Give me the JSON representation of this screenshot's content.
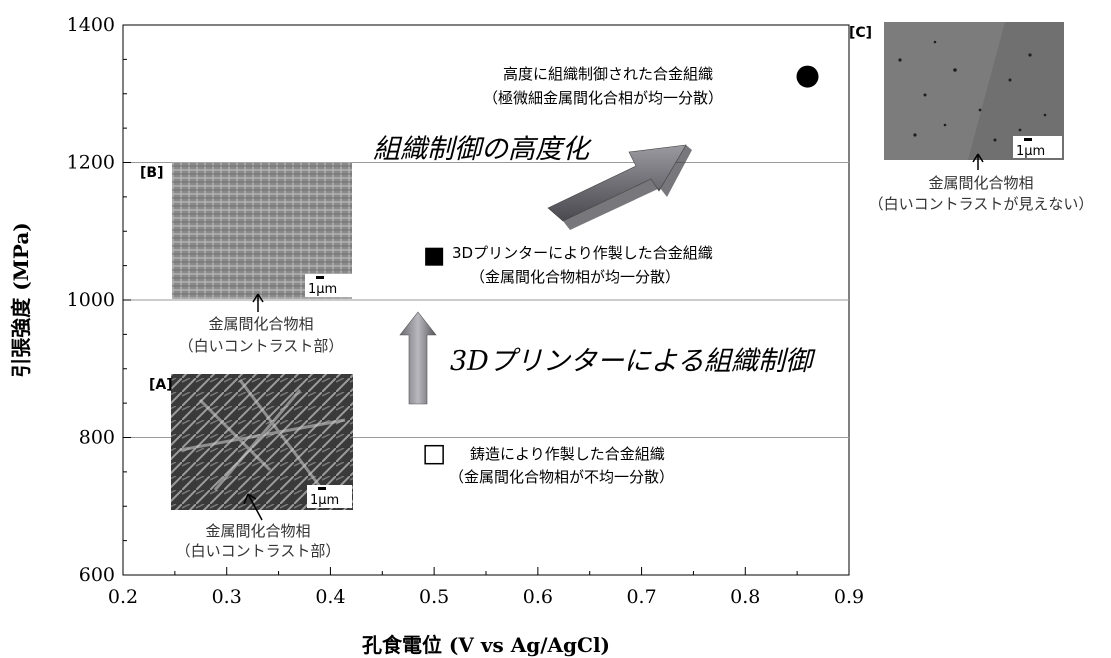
{
  "chart_data": {
    "type": "scatter",
    "xlabel": "孔食電位 (V vs Ag/AgCl)",
    "ylabel": "引張強度 (MPa)",
    "xlim": [
      0.2,
      0.9
    ],
    "ylim": [
      600,
      1400
    ],
    "x_ticks": [
      "0.2",
      "0.3",
      "0.4",
      "0.5",
      "0.6",
      "0.7",
      "0.8",
      "0.9"
    ],
    "y_ticks": [
      "600",
      "800",
      "1000",
      "1200",
      "1400"
    ],
    "grid": "horizontal at 800, 1000, 1200",
    "points": [
      {
        "x": 0.5,
        "y": 775,
        "marker": "open-square",
        "label1": "鋳造により作製した合金組織",
        "label2": "（金属間化合物相が不均一分散）"
      },
      {
        "x": 0.5,
        "y": 1063,
        "marker": "filled-square",
        "label1": "3Dプリンターにより作製した合金組織",
        "label2": "（金属間化合物相が均一分散）"
      },
      {
        "x": 0.86,
        "y": 1325,
        "marker": "filled-circle",
        "label1": "高度に組織制御された合金組織",
        "label2": "（極微細金属間化合相が均一分散）"
      }
    ],
    "annotations": {
      "arrow_up_label": "3Dプリンターによる組織制御",
      "arrow_diag_label": "組織制御の高度化"
    },
    "insets": [
      {
        "tag": "[A]",
        "scale": "1μm",
        "caption1": "金属間化合物相",
        "caption2": "（白いコントラスト部）",
        "tone": "dark-dendritic"
      },
      {
        "tag": "[B]",
        "scale": "1μm",
        "caption1": "金属間化合物相",
        "caption2": "（白いコントラスト部）",
        "tone": "grid-lamellae"
      },
      {
        "tag": "[C]",
        "scale": "1μm",
        "caption1": "金属間化合物相",
        "caption2": "（白いコントラストが見えない）",
        "tone": "uniform-gray"
      }
    ]
  }
}
